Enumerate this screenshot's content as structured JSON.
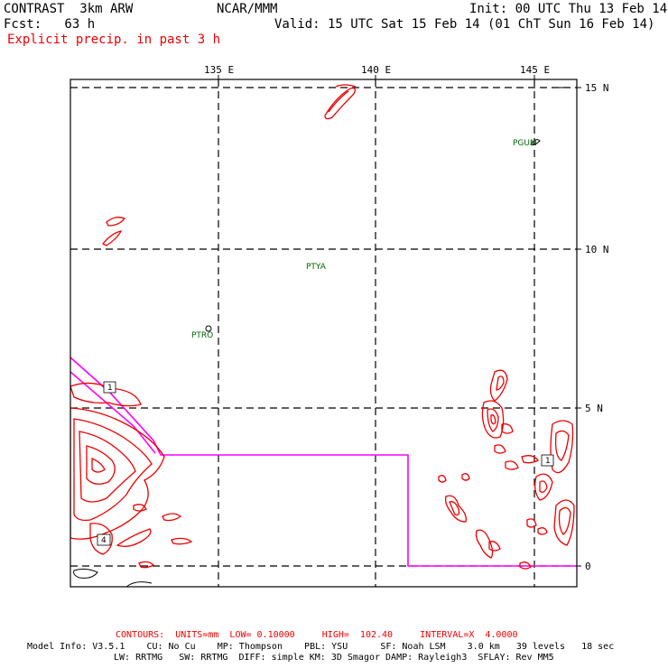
{
  "header": {
    "model": "CONTRAST  3km ARW",
    "center": "NCAR/MMM",
    "init": "Init: 00 UTC Thu 13 Feb 14",
    "fcst": "Fcst:   63 h",
    "valid": "Valid: 15 UTC Sat 15 Feb 14 (01 ChT Sun 16 Feb 14)",
    "field": "Explicit precip. in past 3 h"
  },
  "axes": {
    "lon_labels": [
      "135 E",
      "140 E",
      "145 E"
    ],
    "lat_labels": [
      "15 N",
      "10 N",
      "5 N",
      "0"
    ]
  },
  "stations": [
    "PGUM",
    "PTYA",
    "PTRO"
  ],
  "contour_labels": [
    "1",
    "1",
    "4"
  ],
  "footer": {
    "contours": "CONTOURS:  UNITS=mm  LOW= 0.10000     HIGH=  102.40     INTERVAL=X  4.0000",
    "model_info_1": "Model Info: V3.5.1    CU: No Cu    MP: Thompson    PBL: YSU      SF: Noah LSM    3.0 km   39 levels   18 sec",
    "model_info_2": "LW: RRTMG   SW: RRTMG  DIFF: simple KM: 3D Smagor DAMP: Rayleigh3  SFLAY: Rev MM5"
  },
  "colors": {
    "precip_contour": "#ee0000",
    "boundary": "#ff00ff",
    "station": "#006600",
    "grid": "#000000"
  }
}
